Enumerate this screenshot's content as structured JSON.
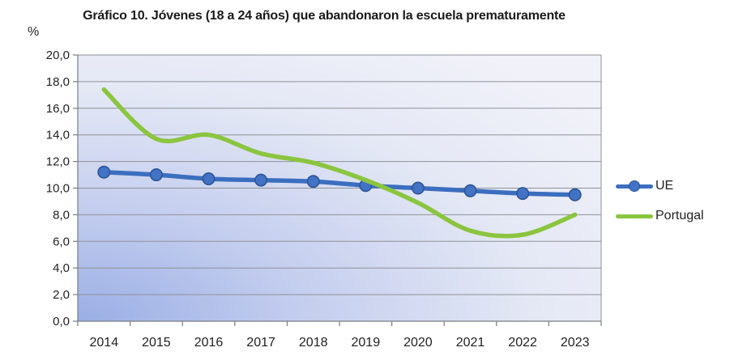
{
  "chart_data": {
    "type": "line",
    "title": "Gráfico 10. Jóvenes (18 a 24 años) que abandonaron la escuela prematuramente",
    "ylabel": "%",
    "xlabel": "",
    "categories": [
      "2014",
      "2015",
      "2016",
      "2017",
      "2018",
      "2019",
      "2020",
      "2021",
      "2022",
      "2023"
    ],
    "series": [
      {
        "name": "UE",
        "values": [
          11.2,
          11.0,
          10.7,
          10.6,
          10.5,
          10.2,
          10.0,
          9.8,
          9.6,
          9.5
        ],
        "color": "#3b6ebf",
        "marker": "circle",
        "marker_fill": "#4273c4",
        "marker_stroke": "#2e5597"
      },
      {
        "name": "Portugal",
        "values": [
          17.4,
          13.7,
          14.0,
          12.6,
          11.9,
          10.6,
          8.9,
          6.8,
          6.5,
          8.0
        ],
        "color": "#8bc53f",
        "marker": "none"
      }
    ],
    "ylim": [
      0,
      20
    ],
    "ytick_step": 2,
    "ytick_labels": [
      "0,0",
      "2,0",
      "4,0",
      "6,0",
      "8,0",
      "10,0",
      "12,0",
      "14,0",
      "16,0",
      "18,0",
      "20,0"
    ],
    "grid": true,
    "smoothed_lines": true,
    "legend_position": "right",
    "colors": {
      "gridline": "#8f9298",
      "axis": "#7a7d82",
      "tick_text": "#1f1f1f",
      "plot_bg_stops": [
        "#9aaee5",
        "#c3cdee",
        "#e4e8f5",
        "#f1f2f9"
      ]
    }
  }
}
